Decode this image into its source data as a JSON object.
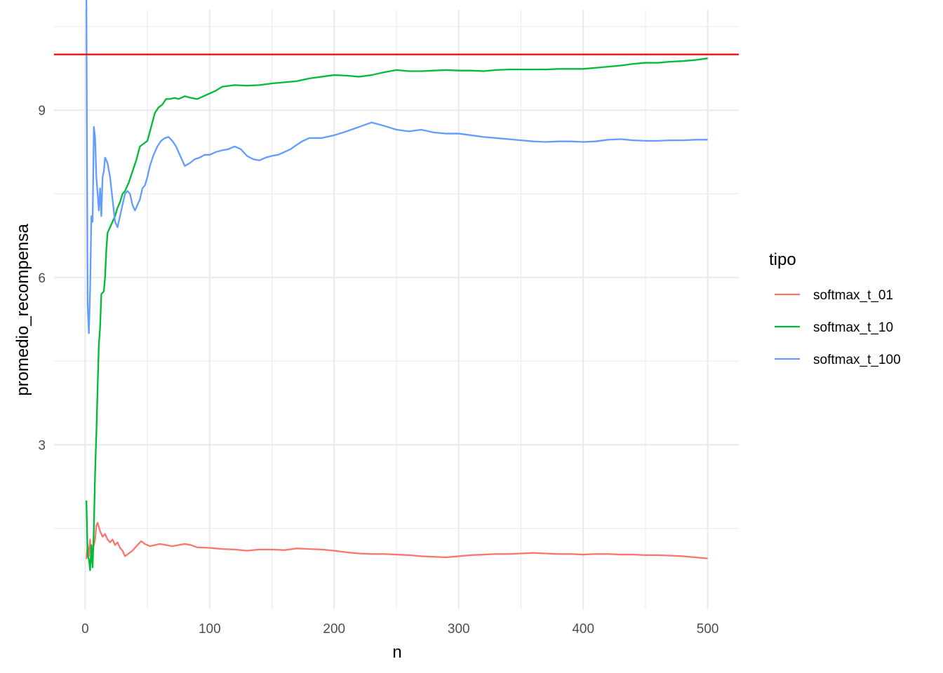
{
  "chart_data": {
    "type": "line",
    "xlabel": "n",
    "ylabel": "promedio_recompensa",
    "xlim": [
      -25,
      525
    ],
    "ylim": [
      0.05,
      10.8
    ],
    "x_ticks": [
      0,
      100,
      200,
      300,
      400,
      500
    ],
    "y_ticks": [
      3,
      6,
      9
    ],
    "grid": true,
    "legend": {
      "title": "tipo",
      "position": "right"
    },
    "reference_line": {
      "y": 10,
      "color": "#ff0000"
    },
    "series": [
      {
        "name": "softmax_t_01",
        "color": "#f8766d",
        "points": [
          [
            1,
            0.95
          ],
          [
            2,
            1.2
          ],
          [
            3,
            1.0
          ],
          [
            4,
            1.3
          ],
          [
            5,
            0.9
          ],
          [
            6,
            1.1
          ],
          [
            7,
            1.2
          ],
          [
            8,
            1.3
          ],
          [
            9,
            1.55
          ],
          [
            10,
            1.6
          ],
          [
            12,
            1.45
          ],
          [
            14,
            1.35
          ],
          [
            16,
            1.4
          ],
          [
            18,
            1.3
          ],
          [
            20,
            1.25
          ],
          [
            22,
            1.3
          ],
          [
            24,
            1.2
          ],
          [
            26,
            1.25
          ],
          [
            28,
            1.15
          ],
          [
            30,
            1.1
          ],
          [
            32,
            1.0
          ],
          [
            35,
            1.05
          ],
          [
            38,
            1.1
          ],
          [
            42,
            1.2
          ],
          [
            45,
            1.27
          ],
          [
            48,
            1.22
          ],
          [
            52,
            1.18
          ],
          [
            56,
            1.2
          ],
          [
            60,
            1.22
          ],
          [
            65,
            1.2
          ],
          [
            70,
            1.18
          ],
          [
            75,
            1.2
          ],
          [
            80,
            1.22
          ],
          [
            85,
            1.2
          ],
          [
            90,
            1.16
          ],
          [
            100,
            1.15
          ],
          [
            110,
            1.13
          ],
          [
            120,
            1.12
          ],
          [
            130,
            1.1
          ],
          [
            140,
            1.12
          ],
          [
            150,
            1.12
          ],
          [
            160,
            1.11
          ],
          [
            170,
            1.14
          ],
          [
            180,
            1.13
          ],
          [
            190,
            1.12
          ],
          [
            200,
            1.1
          ],
          [
            210,
            1.07
          ],
          [
            220,
            1.05
          ],
          [
            230,
            1.04
          ],
          [
            240,
            1.04
          ],
          [
            250,
            1.03
          ],
          [
            260,
            1.02
          ],
          [
            270,
            1.0
          ],
          [
            280,
            0.99
          ],
          [
            290,
            0.98
          ],
          [
            300,
            1.0
          ],
          [
            310,
            1.02
          ],
          [
            320,
            1.03
          ],
          [
            330,
            1.04
          ],
          [
            340,
            1.04
          ],
          [
            350,
            1.05
          ],
          [
            360,
            1.06
          ],
          [
            370,
            1.05
          ],
          [
            380,
            1.04
          ],
          [
            390,
            1.04
          ],
          [
            400,
            1.03
          ],
          [
            410,
            1.04
          ],
          [
            420,
            1.04
          ],
          [
            430,
            1.03
          ],
          [
            440,
            1.03
          ],
          [
            450,
            1.02
          ],
          [
            460,
            1.02
          ],
          [
            470,
            1.01
          ],
          [
            480,
            1.0
          ],
          [
            490,
            0.98
          ],
          [
            500,
            0.96
          ]
        ]
      },
      {
        "name": "softmax_t_10",
        "color": "#00ba38",
        "points": [
          [
            1,
            2.0
          ],
          [
            2,
            1.0
          ],
          [
            3,
            0.95
          ],
          [
            4,
            0.75
          ],
          [
            5,
            1.2
          ],
          [
            6,
            0.8
          ],
          [
            7,
            1.5
          ],
          [
            8,
            2.5
          ],
          [
            9,
            3.2
          ],
          [
            10,
            4.0
          ],
          [
            11,
            4.8
          ],
          [
            12,
            5.1
          ],
          [
            13,
            5.7
          ],
          [
            15,
            5.75
          ],
          [
            16,
            6.0
          ],
          [
            17,
            6.5
          ],
          [
            18,
            6.8
          ],
          [
            20,
            6.9
          ],
          [
            22,
            7.0
          ],
          [
            24,
            7.1
          ],
          [
            26,
            7.25
          ],
          [
            28,
            7.35
          ],
          [
            30,
            7.5
          ],
          [
            32,
            7.55
          ],
          [
            35,
            7.7
          ],
          [
            38,
            7.9
          ],
          [
            41,
            8.1
          ],
          [
            44,
            8.35
          ],
          [
            47,
            8.4
          ],
          [
            50,
            8.45
          ],
          [
            53,
            8.7
          ],
          [
            56,
            8.95
          ],
          [
            59,
            9.05
          ],
          [
            62,
            9.1
          ],
          [
            65,
            9.2
          ],
          [
            68,
            9.2
          ],
          [
            72,
            9.22
          ],
          [
            75,
            9.2
          ],
          [
            80,
            9.25
          ],
          [
            85,
            9.22
          ],
          [
            90,
            9.2
          ],
          [
            95,
            9.25
          ],
          [
            100,
            9.3
          ],
          [
            105,
            9.35
          ],
          [
            110,
            9.42
          ],
          [
            120,
            9.45
          ],
          [
            130,
            9.44
          ],
          [
            140,
            9.45
          ],
          [
            150,
            9.48
          ],
          [
            160,
            9.5
          ],
          [
            170,
            9.52
          ],
          [
            180,
            9.57
          ],
          [
            190,
            9.6
          ],
          [
            200,
            9.63
          ],
          [
            210,
            9.62
          ],
          [
            220,
            9.6
          ],
          [
            230,
            9.63
          ],
          [
            240,
            9.68
          ],
          [
            250,
            9.72
          ],
          [
            260,
            9.7
          ],
          [
            270,
            9.7
          ],
          [
            280,
            9.71
          ],
          [
            290,
            9.72
          ],
          [
            300,
            9.71
          ],
          [
            310,
            9.71
          ],
          [
            320,
            9.7
          ],
          [
            330,
            9.72
          ],
          [
            340,
            9.73
          ],
          [
            350,
            9.73
          ],
          [
            360,
            9.73
          ],
          [
            370,
            9.73
          ],
          [
            380,
            9.74
          ],
          [
            390,
            9.74
          ],
          [
            400,
            9.74
          ],
          [
            410,
            9.76
          ],
          [
            420,
            9.78
          ],
          [
            430,
            9.8
          ],
          [
            440,
            9.83
          ],
          [
            450,
            9.85
          ],
          [
            460,
            9.85
          ],
          [
            470,
            9.87
          ],
          [
            480,
            9.88
          ],
          [
            490,
            9.9
          ],
          [
            500,
            9.93
          ]
        ]
      },
      {
        "name": "softmax_t_100",
        "color": "#619cff",
        "points": [
          [
            1,
            11.0
          ],
          [
            2,
            5.5
          ],
          [
            3,
            5.0
          ],
          [
            4,
            5.8
          ],
          [
            5,
            7.1
          ],
          [
            6,
            7.0
          ],
          [
            7,
            8.7
          ],
          [
            8,
            8.5
          ],
          [
            9,
            7.8
          ],
          [
            10,
            7.5
          ],
          [
            11,
            7.2
          ],
          [
            12,
            7.6
          ],
          [
            13,
            7.1
          ],
          [
            14,
            7.8
          ],
          [
            15,
            7.9
          ],
          [
            16,
            8.15
          ],
          [
            18,
            8.05
          ],
          [
            20,
            7.8
          ],
          [
            22,
            7.4
          ],
          [
            24,
            7.0
          ],
          [
            26,
            6.9
          ],
          [
            28,
            7.1
          ],
          [
            30,
            7.3
          ],
          [
            32,
            7.5
          ],
          [
            34,
            7.55
          ],
          [
            36,
            7.5
          ],
          [
            38,
            7.3
          ],
          [
            40,
            7.2
          ],
          [
            42,
            7.3
          ],
          [
            44,
            7.4
          ],
          [
            46,
            7.6
          ],
          [
            48,
            7.65
          ],
          [
            50,
            7.8
          ],
          [
            52,
            8.0
          ],
          [
            55,
            8.2
          ],
          [
            58,
            8.35
          ],
          [
            61,
            8.45
          ],
          [
            64,
            8.5
          ],
          [
            67,
            8.52
          ],
          [
            70,
            8.45
          ],
          [
            73,
            8.35
          ],
          [
            76,
            8.2
          ],
          [
            80,
            8.0
          ],
          [
            84,
            8.05
          ],
          [
            88,
            8.12
          ],
          [
            92,
            8.15
          ],
          [
            96,
            8.2
          ],
          [
            100,
            8.2
          ],
          [
            105,
            8.25
          ],
          [
            110,
            8.28
          ],
          [
            115,
            8.3
          ],
          [
            120,
            8.35
          ],
          [
            125,
            8.3
          ],
          [
            130,
            8.18
          ],
          [
            135,
            8.12
          ],
          [
            140,
            8.1
          ],
          [
            145,
            8.15
          ],
          [
            150,
            8.18
          ],
          [
            155,
            8.2
          ],
          [
            160,
            8.25
          ],
          [
            165,
            8.3
          ],
          [
            170,
            8.38
          ],
          [
            175,
            8.45
          ],
          [
            180,
            8.5
          ],
          [
            190,
            8.5
          ],
          [
            200,
            8.55
          ],
          [
            210,
            8.62
          ],
          [
            220,
            8.7
          ],
          [
            230,
            8.78
          ],
          [
            240,
            8.72
          ],
          [
            250,
            8.65
          ],
          [
            260,
            8.62
          ],
          [
            270,
            8.65
          ],
          [
            280,
            8.6
          ],
          [
            290,
            8.58
          ],
          [
            300,
            8.58
          ],
          [
            310,
            8.55
          ],
          [
            320,
            8.52
          ],
          [
            330,
            8.5
          ],
          [
            340,
            8.48
          ],
          [
            350,
            8.46
          ],
          [
            360,
            8.44
          ],
          [
            370,
            8.43
          ],
          [
            380,
            8.44
          ],
          [
            390,
            8.44
          ],
          [
            400,
            8.43
          ],
          [
            410,
            8.44
          ],
          [
            420,
            8.47
          ],
          [
            430,
            8.48
          ],
          [
            440,
            8.46
          ],
          [
            450,
            8.45
          ],
          [
            460,
            8.45
          ],
          [
            470,
            8.46
          ],
          [
            480,
            8.46
          ],
          [
            490,
            8.47
          ],
          [
            500,
            8.47
          ]
        ]
      }
    ]
  }
}
